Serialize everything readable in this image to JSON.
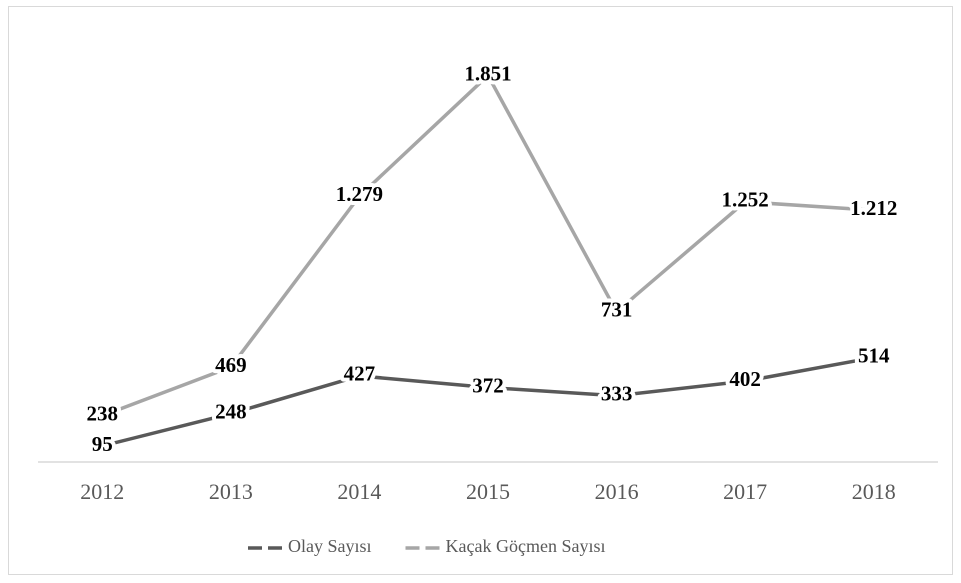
{
  "chart_data": {
    "type": "line",
    "categories": [
      "2012",
      "2013",
      "2014",
      "2015",
      "2016",
      "2017",
      "2018"
    ],
    "series": [
      {
        "name": "Olay Sayısı",
        "color": "#595959",
        "values": [
          95,
          248,
          427,
          372,
          333,
          402,
          514
        ]
      },
      {
        "name": "Kaçak Göçmen Sayısı",
        "color": "#a6a6a6",
        "values": [
          238,
          469,
          1279,
          1851,
          731,
          1252,
          1212
        ],
        "value_labels": [
          "238",
          "469",
          "1.279",
          "1.851",
          "731",
          "1.252",
          "1.212"
        ]
      }
    ],
    "ylim": [
      0,
      2000
    ]
  }
}
